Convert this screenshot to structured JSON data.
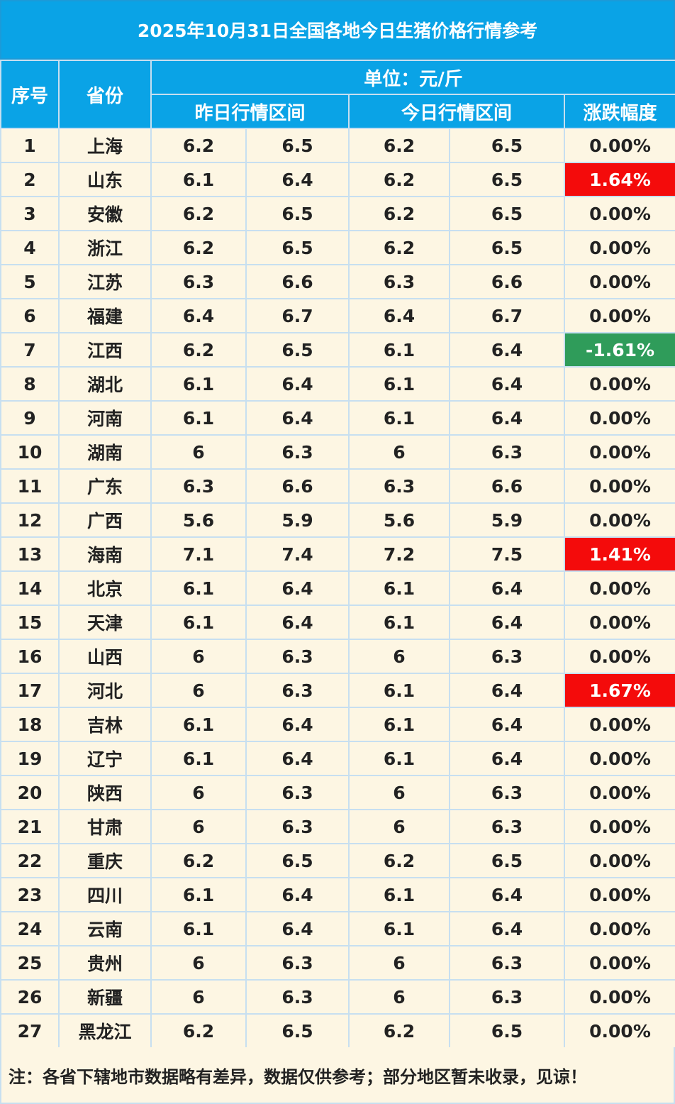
{
  "title": "2025年10月31日全国各地今日生猪价格行情参考",
  "header": {
    "index": "序号",
    "province": "省份",
    "unit": "单位：元/斤",
    "yesterday": "昨日行情区间",
    "today": "今日行情区间",
    "change": "涨跌幅度"
  },
  "colors": {
    "header_bg": "#0aa3e6",
    "row_bg": "#fdf6e3",
    "up": "#f40b0b",
    "down": "#2f9c5a"
  },
  "rows": [
    {
      "n": "1",
      "prov": "上海",
      "y_lo": "6.2",
      "y_hi": "6.5",
      "t_lo": "6.2",
      "t_hi": "6.5",
      "chg": "0.00%",
      "trend": "flat"
    },
    {
      "n": "2",
      "prov": "山东",
      "y_lo": "6.1",
      "y_hi": "6.4",
      "t_lo": "6.2",
      "t_hi": "6.5",
      "chg": "1.64%",
      "trend": "up"
    },
    {
      "n": "3",
      "prov": "安徽",
      "y_lo": "6.2",
      "y_hi": "6.5",
      "t_lo": "6.2",
      "t_hi": "6.5",
      "chg": "0.00%",
      "trend": "flat"
    },
    {
      "n": "4",
      "prov": "浙江",
      "y_lo": "6.2",
      "y_hi": "6.5",
      "t_lo": "6.2",
      "t_hi": "6.5",
      "chg": "0.00%",
      "trend": "flat"
    },
    {
      "n": "5",
      "prov": "江苏",
      "y_lo": "6.3",
      "y_hi": "6.6",
      "t_lo": "6.3",
      "t_hi": "6.6",
      "chg": "0.00%",
      "trend": "flat"
    },
    {
      "n": "6",
      "prov": "福建",
      "y_lo": "6.4",
      "y_hi": "6.7",
      "t_lo": "6.4",
      "t_hi": "6.7",
      "chg": "0.00%",
      "trend": "flat"
    },
    {
      "n": "7",
      "prov": "江西",
      "y_lo": "6.2",
      "y_hi": "6.5",
      "t_lo": "6.1",
      "t_hi": "6.4",
      "chg": "-1.61%",
      "trend": "down"
    },
    {
      "n": "8",
      "prov": "湖北",
      "y_lo": "6.1",
      "y_hi": "6.4",
      "t_lo": "6.1",
      "t_hi": "6.4",
      "chg": "0.00%",
      "trend": "flat"
    },
    {
      "n": "9",
      "prov": "河南",
      "y_lo": "6.1",
      "y_hi": "6.4",
      "t_lo": "6.1",
      "t_hi": "6.4",
      "chg": "0.00%",
      "trend": "flat"
    },
    {
      "n": "10",
      "prov": "湖南",
      "y_lo": "6",
      "y_hi": "6.3",
      "t_lo": "6",
      "t_hi": "6.3",
      "chg": "0.00%",
      "trend": "flat"
    },
    {
      "n": "11",
      "prov": "广东",
      "y_lo": "6.3",
      "y_hi": "6.6",
      "t_lo": "6.3",
      "t_hi": "6.6",
      "chg": "0.00%",
      "trend": "flat"
    },
    {
      "n": "12",
      "prov": "广西",
      "y_lo": "5.6",
      "y_hi": "5.9",
      "t_lo": "5.6",
      "t_hi": "5.9",
      "chg": "0.00%",
      "trend": "flat"
    },
    {
      "n": "13",
      "prov": "海南",
      "y_lo": "7.1",
      "y_hi": "7.4",
      "t_lo": "7.2",
      "t_hi": "7.5",
      "chg": "1.41%",
      "trend": "up"
    },
    {
      "n": "14",
      "prov": "北京",
      "y_lo": "6.1",
      "y_hi": "6.4",
      "t_lo": "6.1",
      "t_hi": "6.4",
      "chg": "0.00%",
      "trend": "flat"
    },
    {
      "n": "15",
      "prov": "天津",
      "y_lo": "6.1",
      "y_hi": "6.4",
      "t_lo": "6.1",
      "t_hi": "6.4",
      "chg": "0.00%",
      "trend": "flat"
    },
    {
      "n": "16",
      "prov": "山西",
      "y_lo": "6",
      "y_hi": "6.3",
      "t_lo": "6",
      "t_hi": "6.3",
      "chg": "0.00%",
      "trend": "flat"
    },
    {
      "n": "17",
      "prov": "河北",
      "y_lo": "6",
      "y_hi": "6.3",
      "t_lo": "6.1",
      "t_hi": "6.4",
      "chg": "1.67%",
      "trend": "up"
    },
    {
      "n": "18",
      "prov": "吉林",
      "y_lo": "6.1",
      "y_hi": "6.4",
      "t_lo": "6.1",
      "t_hi": "6.4",
      "chg": "0.00%",
      "trend": "flat"
    },
    {
      "n": "19",
      "prov": "辽宁",
      "y_lo": "6.1",
      "y_hi": "6.4",
      "t_lo": "6.1",
      "t_hi": "6.4",
      "chg": "0.00%",
      "trend": "flat"
    },
    {
      "n": "20",
      "prov": "陕西",
      "y_lo": "6",
      "y_hi": "6.3",
      "t_lo": "6",
      "t_hi": "6.3",
      "chg": "0.00%",
      "trend": "flat"
    },
    {
      "n": "21",
      "prov": "甘肃",
      "y_lo": "6",
      "y_hi": "6.3",
      "t_lo": "6",
      "t_hi": "6.3",
      "chg": "0.00%",
      "trend": "flat"
    },
    {
      "n": "22",
      "prov": "重庆",
      "y_lo": "6.2",
      "y_hi": "6.5",
      "t_lo": "6.2",
      "t_hi": "6.5",
      "chg": "0.00%",
      "trend": "flat"
    },
    {
      "n": "23",
      "prov": "四川",
      "y_lo": "6.1",
      "y_hi": "6.4",
      "t_lo": "6.1",
      "t_hi": "6.4",
      "chg": "0.00%",
      "trend": "flat"
    },
    {
      "n": "24",
      "prov": "云南",
      "y_lo": "6.1",
      "y_hi": "6.4",
      "t_lo": "6.1",
      "t_hi": "6.4",
      "chg": "0.00%",
      "trend": "flat"
    },
    {
      "n": "25",
      "prov": "贵州",
      "y_lo": "6",
      "y_hi": "6.3",
      "t_lo": "6",
      "t_hi": "6.3",
      "chg": "0.00%",
      "trend": "flat"
    },
    {
      "n": "26",
      "prov": "新疆",
      "y_lo": "6",
      "y_hi": "6.3",
      "t_lo": "6",
      "t_hi": "6.3",
      "chg": "0.00%",
      "trend": "flat"
    },
    {
      "n": "27",
      "prov": "黑龙江",
      "y_lo": "6.2",
      "y_hi": "6.5",
      "t_lo": "6.2",
      "t_hi": "6.5",
      "chg": "0.00%",
      "trend": "flat"
    }
  ],
  "note": "注：各省下辖地市数据略有差异，数据仅供参考；部分地区暂未收录，见谅！"
}
